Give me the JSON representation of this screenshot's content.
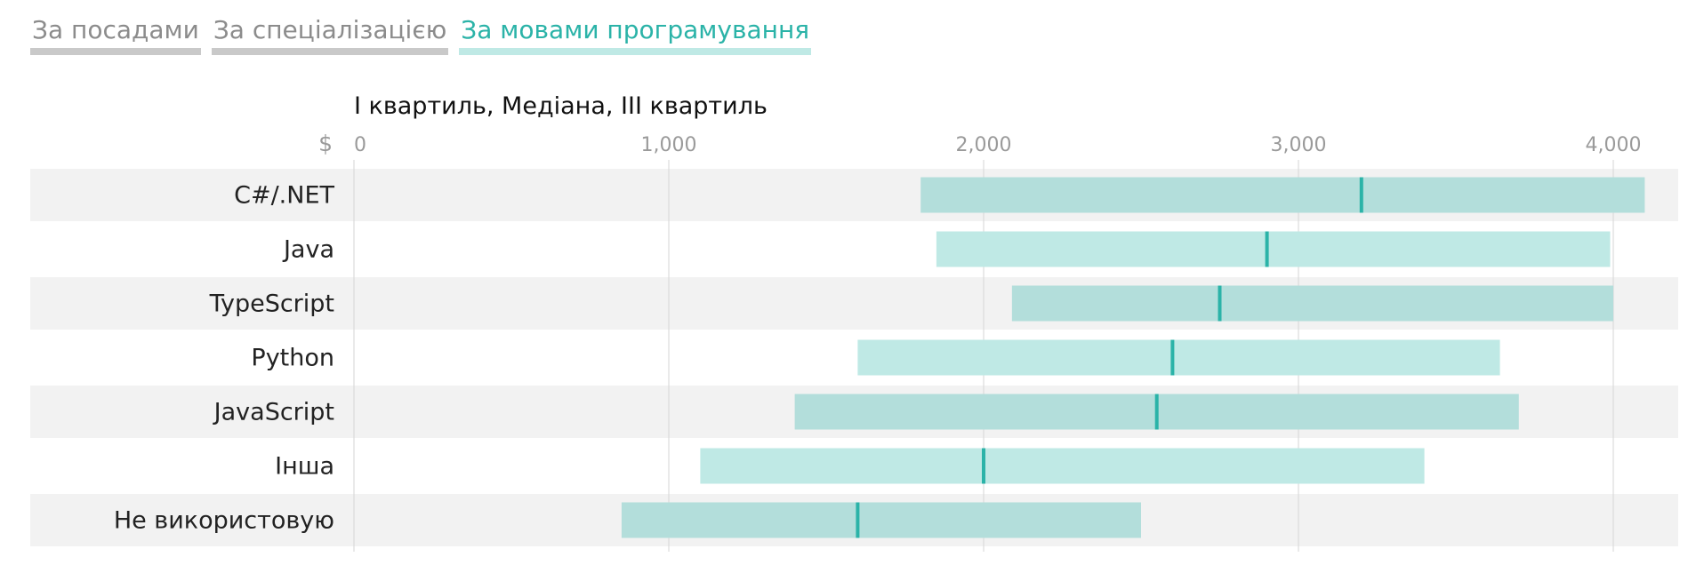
{
  "tabs": [
    {
      "label": "За посадами",
      "active": false
    },
    {
      "label": "За спеціалізацією",
      "active": false
    },
    {
      "label": "За мовами програмування",
      "active": true
    }
  ],
  "chart_data": {
    "type": "bar",
    "title": "І квартиль, Медіана, ІІІ квартиль",
    "currency": "$",
    "xlim": [
      0,
      4200
    ],
    "xticks": [
      0,
      1000,
      2000,
      3000,
      4000
    ],
    "xtick_labels": [
      "0",
      "1,000",
      "2,000",
      "3,000",
      "4,000"
    ],
    "categories": [
      "C#/.NET",
      "Java",
      "TypeScript",
      "Python",
      "JavaScript",
      "Інша",
      "Не використовую"
    ],
    "series": [
      {
        "name": "І квартиль",
        "values": [
          1800,
          1850,
          2090,
          1600,
          1400,
          1100,
          850
        ]
      },
      {
        "name": "Медіана",
        "values": [
          3200,
          2900,
          2750,
          2600,
          2550,
          2000,
          1600
        ]
      },
      {
        "name": "ІІІ квартиль",
        "values": [
          4100,
          3990,
          4000,
          3640,
          3700,
          3400,
          2500
        ]
      }
    ],
    "colors": {
      "band": "#bfe9e5",
      "band_alt": "#b3dedb",
      "median": "#2bb3a8",
      "row_alt": "#f2f2f2",
      "grid": "#dcdcdc",
      "tick": "#9a9a9a",
      "label": "#222222"
    }
  }
}
